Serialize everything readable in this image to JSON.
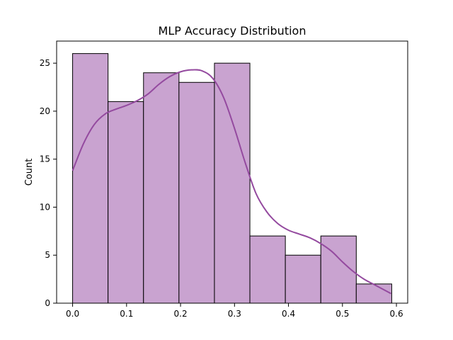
{
  "chart_data": {
    "type": "bar",
    "subtype": "histogram-with-kde",
    "title": "MLP Accuracy Distribution",
    "xlabel": "",
    "ylabel": "Count",
    "bins": [
      {
        "start": 0.0,
        "end": 0.0657,
        "count": 26
      },
      {
        "start": 0.0657,
        "end": 0.1314,
        "count": 21
      },
      {
        "start": 0.1314,
        "end": 0.1971,
        "count": 24
      },
      {
        "start": 0.1971,
        "end": 0.2628,
        "count": 23
      },
      {
        "start": 0.2628,
        "end": 0.3285,
        "count": 25
      },
      {
        "start": 0.3285,
        "end": 0.3942,
        "count": 7
      },
      {
        "start": 0.3942,
        "end": 0.4599,
        "count": 5
      },
      {
        "start": 0.4599,
        "end": 0.5256,
        "count": 7
      },
      {
        "start": 0.5256,
        "end": 0.5913,
        "count": 2
      }
    ],
    "kde": {
      "x": [
        0.0,
        0.02,
        0.04,
        0.06,
        0.08,
        0.1,
        0.12,
        0.14,
        0.16,
        0.18,
        0.2,
        0.22,
        0.24,
        0.26,
        0.28,
        0.3,
        0.32,
        0.34,
        0.36,
        0.38,
        0.4,
        0.42,
        0.44,
        0.46,
        0.48,
        0.5,
        0.52,
        0.54,
        0.56,
        0.58,
        0.59
      ],
      "y": [
        13.8,
        16.6,
        18.6,
        19.7,
        20.2,
        20.6,
        21.1,
        21.8,
        22.8,
        23.6,
        24.1,
        24.3,
        24.2,
        23.4,
        21.4,
        18.2,
        14.6,
        11.4,
        9.5,
        8.3,
        7.6,
        7.2,
        6.8,
        6.2,
        5.4,
        4.3,
        3.3,
        2.5,
        1.9,
        1.3,
        1.0
      ]
    },
    "xlim": [
      -0.0296,
      0.6209
    ],
    "ylim": [
      0,
      27.3
    ],
    "xticks": [
      0.0,
      0.1,
      0.2,
      0.3,
      0.4,
      0.5,
      0.6
    ],
    "xtick_labels": [
      "0.0",
      "0.1",
      "0.2",
      "0.3",
      "0.4",
      "0.5",
      "0.6"
    ],
    "yticks": [
      0,
      5,
      10,
      15,
      20,
      25
    ],
    "ytick_labels": [
      "0",
      "5",
      "10",
      "15",
      "20",
      "25"
    ],
    "grid": false,
    "legend": "none",
    "colors": {
      "bar_fill": "#c9a3d0",
      "bar_edge": "#000000",
      "kde_line": "#944a9f",
      "axis": "#000000"
    }
  }
}
